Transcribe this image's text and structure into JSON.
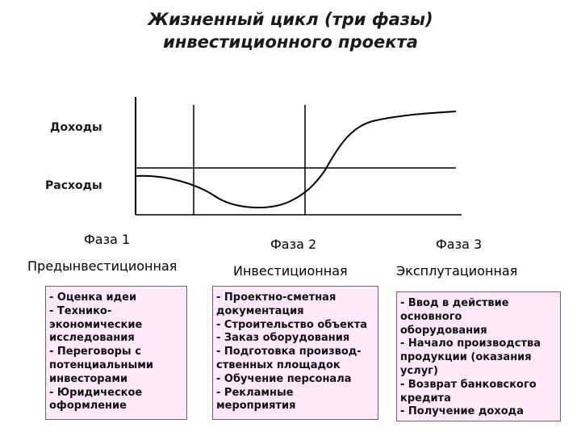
{
  "title": {
    "line1": "Жизненный цикл (три фазы)",
    "line2": "инвестиционного проекта"
  },
  "diagram": {
    "y_labels": {
      "income": "Доходы",
      "expenses": "Расходы"
    },
    "line_color": "#000000"
  },
  "phases": [
    {
      "name": "Фаза 1",
      "type": "Предынвестиционная",
      "items": [
        "- Оценка идеи",
        "- Технико-\nэкономические\nисследования",
        "- Переговоры с\nпотенциальными\nинвесторами",
        "- Юридическое\nоформление"
      ]
    },
    {
      "name": "Фаза 2",
      "type": "Инвестиционная",
      "items": [
        "- Проектно-сметная\n  документация",
        "- Строительство объекта",
        "- Заказ оборудования",
        "- Подготовка производ-\n  ственных площадок",
        "- Обучение персонала",
        "- Рекламные\nмероприятия"
      ]
    },
    {
      "name": "Фаза 3",
      "type": "Эксплутационная",
      "items": [
        "- Ввод в действие\nосновного\nоборудования",
        "- Начало производства\nпродукции (оказания\nуслуг)",
        "- Возврат банковского\nкредита",
        "- Получение дохода"
      ]
    }
  ],
  "colors": {
    "box_fill": "#fde9fb",
    "box_border": "#666666"
  }
}
